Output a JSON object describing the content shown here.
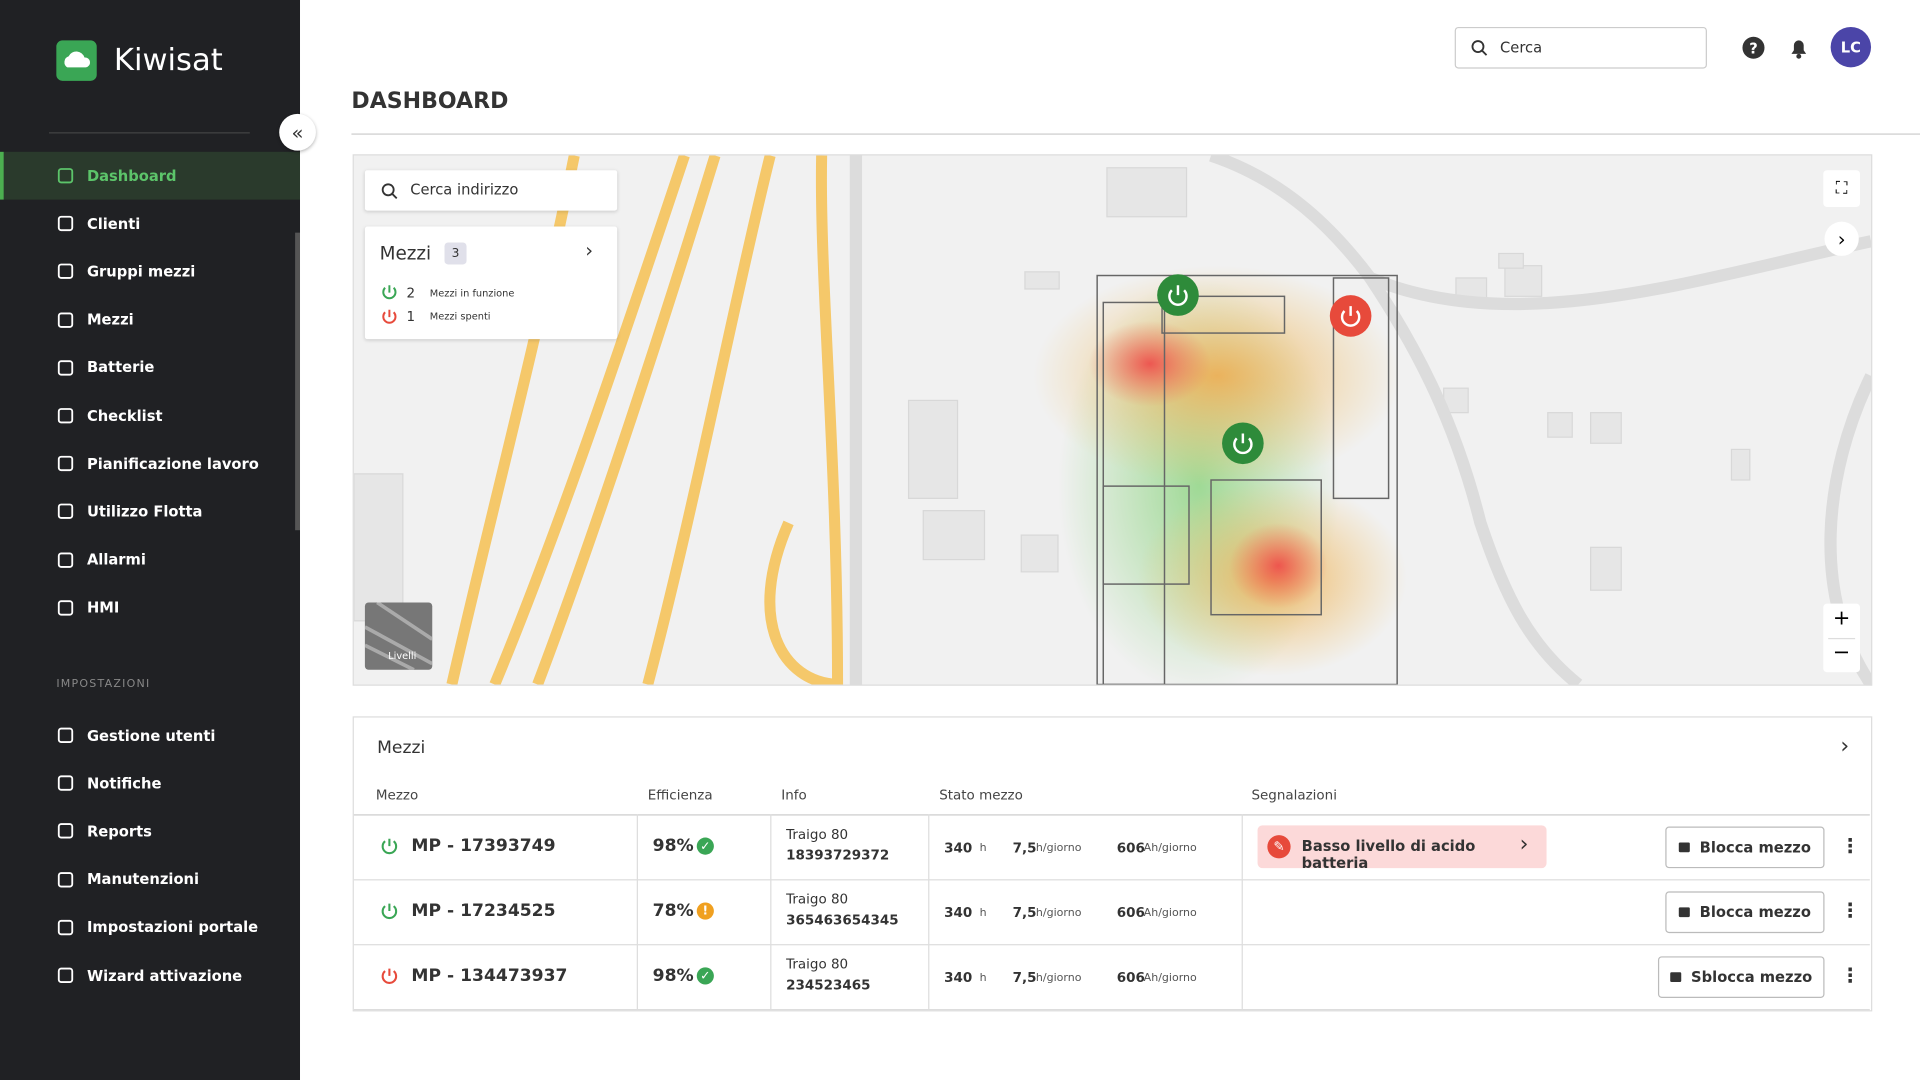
{
  "brand": "Kiwisat",
  "sidebar": {
    "menu": [
      "Dashboard",
      "Clienti",
      "Gruppi mezzi",
      "Mezzi",
      "Batterie",
      "Checklist",
      "Pianificazione lavoro",
      "Utilizzo Flotta",
      "Allarmi",
      "HMI"
    ],
    "section_title": "IMPOSTAZIONI",
    "settings": [
      "Gestione utenti",
      "Notifiche",
      "Reports",
      "Manutenzioni",
      "Impostazioni portale",
      "Wizard attivazione"
    ]
  },
  "header": {
    "search_placeholder": "Cerca",
    "avatar": "LC",
    "title": "DASHBOARD"
  },
  "map": {
    "search_placeholder": "Cerca indirizzo",
    "panel_title": "Mezzi",
    "count": "3",
    "on_count": "2",
    "on_label": "Mezzi in funzione",
    "off_count": "1",
    "off_label": "Mezzi spenti",
    "layers_label": "Livelli",
    "zoom_in": "+",
    "zoom_out": "−"
  },
  "table": {
    "title": "Mezzi",
    "columns": [
      "Mezzo",
      "Efficienza",
      "Info",
      "Stato mezzo",
      "Segnalazioni"
    ],
    "rows": [
      {
        "name": "MP - 17393749",
        "on": true,
        "efficiency": "98%",
        "ok": true,
        "model": "Traigo 80",
        "serial": "18393729372",
        "hours": "340",
        "hours_unit": "h",
        "daily": "7,5",
        "daily_unit": "h/giorno",
        "ah": "606",
        "ah_unit": "Ah/giorno",
        "alert": "Basso livello di acido batteria",
        "action": "Blocca mezzo"
      },
      {
        "name": "MP - 17234525",
        "on": true,
        "efficiency": "78%",
        "ok": false,
        "model": "Traigo 80",
        "serial": "365463654345",
        "hours": "340",
        "hours_unit": "h",
        "daily": "7,5",
        "daily_unit": "h/giorno",
        "ah": "606",
        "ah_unit": "Ah/giorno",
        "action": "Blocca mezzo"
      },
      {
        "name": "MP - 134473937",
        "on": false,
        "efficiency": "98%",
        "ok": true,
        "model": "Traigo 80",
        "serial": "234523465",
        "hours": "340",
        "hours_unit": "h",
        "daily": "7,5",
        "daily_unit": "h/giorno",
        "ah": "606",
        "ah_unit": "Ah/giorno",
        "action": "Sblocca mezzo"
      }
    ]
  }
}
